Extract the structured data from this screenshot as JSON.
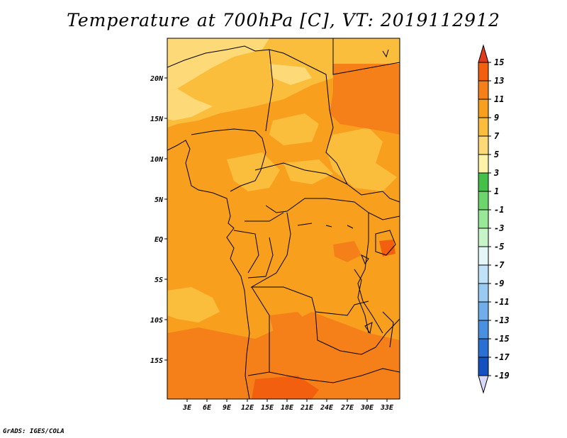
{
  "title": "Temperature at 700hPa [C], VT: 2019112912",
  "credit": "GrADS: IGES/COLA",
  "map": {
    "lon_ticks": [
      "3E",
      "6E",
      "9E",
      "12E",
      "15E",
      "18E",
      "21E",
      "24E",
      "27E",
      "30E",
      "33E"
    ],
    "lat_ticks": [
      "20N",
      "15N",
      "10N",
      "5N",
      "EQ",
      "5S",
      "10S",
      "15S"
    ]
  },
  "colorbar": {
    "labels": [
      "15",
      "13",
      "11",
      "9",
      "7",
      "5",
      "3",
      "1",
      "-1",
      "-3",
      "-5",
      "-7",
      "-9",
      "-11",
      "-13",
      "-15",
      "-17",
      "-19"
    ],
    "colors": [
      "#e8401a",
      "#f2600f",
      "#f5801a",
      "#f8a01e",
      "#fbbe3c",
      "#fdd978",
      "#fef2a8",
      "#44c048",
      "#6cd66c",
      "#98e898",
      "#c6f4c6",
      "#e4f6f8",
      "#bfe2f8",
      "#98caf2",
      "#70aeea",
      "#4a90e0",
      "#2a70d4",
      "#1450c0",
      "#0a30a4",
      "#061a7e",
      "#d8d8f8"
    ],
    "top_color": "#e03a1a",
    "bottom_color": "#d8d8f8"
  },
  "legend_colors": {
    "c_7_9": "#fbbe3c",
    "c_9_11": "#f8a01e",
    "c_11_13": "#f5801a",
    "c_13_15": "#f2600f",
    "c_5_7": "#fdd978"
  }
}
